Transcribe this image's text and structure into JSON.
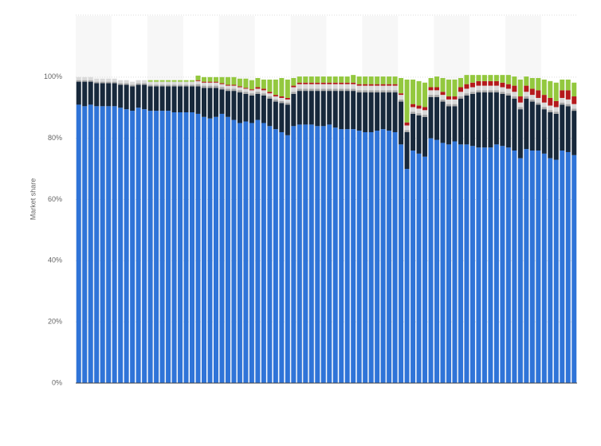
{
  "chart_data": {
    "type": "stacked-bar",
    "y_label": "Market share",
    "categories": [
      null,
      null,
      null,
      null,
      null,
      null,
      null,
      null,
      null,
      null,
      null,
      null,
      null,
      null,
      null,
      null,
      null,
      null,
      null,
      null,
      null,
      null,
      null,
      null,
      null,
      null,
      null,
      null,
      null,
      null,
      null,
      null,
      null,
      null,
      null,
      null,
      null,
      null,
      null,
      null,
      null,
      null,
      null,
      null,
      null,
      null,
      null,
      null,
      null,
      null,
      null,
      null,
      null,
      null,
      null,
      null,
      null,
      null,
      null,
      null,
      null,
      null,
      null,
      null,
      null,
      null,
      null,
      null,
      null,
      null,
      null,
      null,
      null,
      null,
      null,
      null,
      null,
      null,
      null,
      null,
      null,
      null,
      null,
      null
    ],
    "series": [
      {
        "color": "#2f74d8",
        "values": [
          91,
          90.5,
          91,
          90.5,
          90.5,
          90.5,
          90.5,
          90,
          89.5,
          89,
          90,
          89.5,
          89,
          89,
          89,
          89,
          88.5,
          88.5,
          88.5,
          88.5,
          88,
          87,
          86.5,
          87,
          88,
          87,
          86,
          85,
          85.5,
          85,
          86,
          85,
          84,
          83,
          82,
          81,
          84,
          84.5,
          84.5,
          84.5,
          84,
          84,
          84.5,
          83.5,
          83,
          83,
          83,
          82.5,
          82,
          82,
          82.5,
          83,
          82.5,
          82,
          78,
          70,
          76,
          75,
          74,
          80,
          79.5,
          78.5,
          78,
          79,
          78,
          78,
          77.5,
          77,
          77,
          77,
          78,
          77.5,
          77,
          76,
          73.5,
          76.5,
          76,
          76,
          75,
          73.5,
          73,
          76,
          75.5,
          74.5
        ]
      },
      {
        "color": "#17283b",
        "values": [
          7.5,
          8,
          7.5,
          7.5,
          7.5,
          7.5,
          7.5,
          7.5,
          8,
          8,
          7.5,
          8,
          8,
          8,
          8,
          8,
          8.5,
          8.5,
          8.5,
          8.5,
          9,
          9.5,
          10,
          9.5,
          8,
          8.5,
          9.5,
          10,
          9,
          9,
          8.5,
          9,
          9,
          9,
          9.5,
          10,
          10.5,
          11,
          11,
          11,
          11.5,
          11.5,
          11,
          12,
          12.5,
          12.5,
          12.5,
          12.5,
          13,
          13,
          12.5,
          12,
          12.5,
          13,
          14,
          12,
          12,
          12.5,
          13,
          13.5,
          14,
          13.5,
          12.5,
          11.5,
          15,
          16,
          17,
          18,
          18,
          18,
          17,
          17,
          17,
          17,
          16,
          16.5,
          16,
          15,
          14.5,
          15,
          15,
          15,
          15,
          14.5
        ]
      },
      {
        "color": "#a6a6a6",
        "values": [
          0.5,
          0.5,
          0.5,
          0.5,
          0.5,
          0.5,
          0.5,
          0.5,
          0.5,
          0.5,
          0.5,
          0.5,
          0.5,
          0.5,
          0.5,
          0.5,
          0.5,
          0.5,
          0.5,
          0.5,
          0.7,
          0.7,
          0.7,
          0.7,
          0.7,
          0.7,
          0.7,
          0.7,
          0.7,
          0.7,
          0.7,
          0.7,
          0.7,
          0.7,
          0.7,
          0.7,
          0.7,
          0.7,
          0.7,
          0.7,
          0.7,
          0.7,
          0.7,
          0.7,
          0.7,
          0.7,
          0.7,
          0.7,
          0.7,
          0.7,
          0.7,
          0.7,
          0.7,
          0.7,
          0.7,
          0.7,
          0.7,
          0.7,
          0.7,
          0.7,
          0.7,
          0.7,
          0.7,
          0.7,
          0.7,
          0.7,
          0.7,
          0.7,
          0.7,
          0.7,
          0.7,
          0.7,
          0.7,
          0.7,
          0.7,
          0.7,
          0.7,
          0.7,
          0.7,
          0.7,
          0.7,
          0.7,
          0.7,
          0.7
        ]
      },
      {
        "color": "#d9d9d9",
        "values": [
          1,
          1,
          1,
          1,
          1,
          1,
          1,
          1,
          1,
          1,
          1,
          1,
          1,
          1,
          1,
          1,
          1,
          1,
          1,
          1,
          1,
          1,
          1,
          1,
          1,
          1,
          1,
          1,
          1,
          1,
          1,
          1,
          1,
          1,
          1,
          1,
          1.5,
          1.5,
          1.5,
          1.5,
          1.5,
          1.5,
          1.5,
          1.5,
          1.5,
          1.5,
          1.5,
          1.5,
          1.5,
          1.5,
          1.5,
          1.5,
          1.5,
          1.5,
          1.5,
          1.5,
          1.5,
          1.5,
          1.5,
          1.5,
          1.5,
          1.5,
          1.5,
          1.5,
          1.5,
          1.5,
          1.5,
          1.5,
          1.5,
          1.5,
          1.5,
          1.5,
          1.5,
          1.5,
          1.5,
          1.5,
          1.5,
          1.5,
          1.5,
          1.5,
          1.5,
          1.5,
          1.5,
          1.5
        ]
      },
      {
        "color": "#b5191c",
        "values": [
          0,
          0,
          0,
          0,
          0,
          0,
          0,
          0,
          0,
          0,
          0,
          0,
          0,
          0,
          0,
          0,
          0,
          0,
          0,
          0,
          0.3,
          0.3,
          0.3,
          0.3,
          0.3,
          0.3,
          0.3,
          0.3,
          0.3,
          0.3,
          0.5,
          0.5,
          0.5,
          0.5,
          0.5,
          0.5,
          0.5,
          0.5,
          0.5,
          0.5,
          0.5,
          0.5,
          0.5,
          0.5,
          0.5,
          0.5,
          0.5,
          0.5,
          0.5,
          0.5,
          0.5,
          0.5,
          0.5,
          0.5,
          0.5,
          1,
          1,
          1,
          1,
          1,
          1,
          1,
          1,
          1,
          1.5,
          1.5,
          1.5,
          1.5,
          1.5,
          1.5,
          1.5,
          1.5,
          1.5,
          2,
          2,
          2,
          2,
          2.5,
          2.5,
          2.5,
          2,
          2.5,
          3,
          2.5
        ]
      },
      {
        "color": "#93c83e",
        "values": [
          0,
          0,
          0,
          0,
          0,
          0,
          0,
          0,
          0,
          0,
          0,
          0,
          0.5,
          0.5,
          0.5,
          0.5,
          0.5,
          0.5,
          0.5,
          0.5,
          1.5,
          1.5,
          1.5,
          1.5,
          2,
          2.5,
          2.5,
          2.5,
          3,
          3,
          3,
          3,
          4,
          5,
          6,
          6,
          2.5,
          2,
          2,
          2,
          2,
          2,
          2,
          2,
          2,
          2,
          2.5,
          2.5,
          2.5,
          2.5,
          2.5,
          2.5,
          2.5,
          2.5,
          5,
          14,
          8,
          8,
          8,
          3,
          3.5,
          4.5,
          5.5,
          5.5,
          3,
          3,
          2.5,
          2,
          2,
          2,
          2,
          2.5,
          3,
          3,
          5.5,
          3,
          3.5,
          4,
          5,
          5.5,
          6,
          3.5,
          3.5,
          4.5
        ]
      }
    ],
    "ylim": [
      0,
      120
    ],
    "yticks": [
      {
        "value": 0,
        "label": "0%"
      },
      {
        "value": 20,
        "label": "20%"
      },
      {
        "value": 40,
        "label": "40%"
      },
      {
        "value": 60,
        "label": "60%"
      },
      {
        "value": 80,
        "label": "80%"
      },
      {
        "value": 100,
        "label": "100%"
      }
    ],
    "grid": true
  }
}
